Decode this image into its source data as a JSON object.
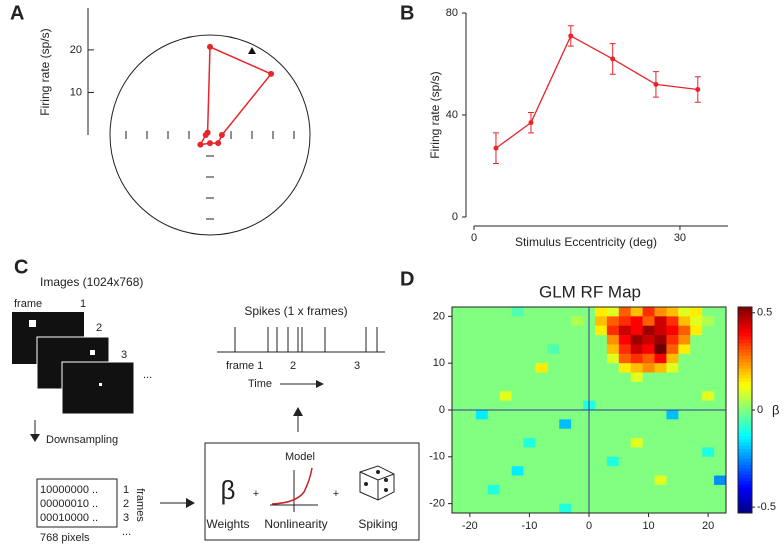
{
  "chart_data": [
    {
      "type": "polar",
      "panel": "A",
      "ylabel": "Firing rate (sp/s)",
      "values": [
        2.8,
        20.3,
        20.7,
        0.8,
        1,
        3.2,
        1.9,
        2.7
      ],
      "color": "#e8262a",
      "rlim": [
        0,
        23.5
      ],
      "rticks": [
        10,
        20
      ]
    },
    {
      "type": "line",
      "panel": "B",
      "xlabel": "Stimulus Eccentricity (deg)",
      "ylabel": "Firing rate (sp/s)",
      "x": [
        3.2,
        8.3,
        14.1,
        20.2,
        26.5,
        32.6
      ],
      "values": [
        27,
        37,
        71,
        62,
        52,
        50
      ],
      "errors": [
        6,
        4,
        4,
        6,
        5,
        5
      ],
      "color": "#e8262a",
      "xlim": [
        0,
        37
      ],
      "xticks": [
        0,
        30
      ],
      "ylim": [
        0,
        80
      ],
      "yticks": [
        0,
        40,
        80
      ]
    },
    {
      "type": "heatmap",
      "panel": "D",
      "title": "GLM RF Map",
      "xlim": [
        -23,
        23
      ],
      "ylim": [
        -22,
        22
      ],
      "xticks": [
        -20,
        -10,
        0,
        10,
        20
      ],
      "yticks": [
        -20,
        -10,
        0,
        10,
        20
      ],
      "zlim": [
        -0.53,
        0.53
      ],
      "zticks": [
        -0.5,
        0,
        0.5
      ],
      "zlabel": "β",
      "z": [
        [
          0,
          0,
          0,
          0,
          0,
          -0.05,
          0,
          0,
          0,
          0,
          0,
          0,
          0.15,
          0.1,
          0.3,
          0.2,
          0.35,
          0.25,
          0.2,
          0.1,
          0.15,
          0,
          0
        ],
        [
          0,
          0,
          0,
          0,
          0,
          0,
          0,
          0,
          0,
          0,
          0.05,
          0,
          0.2,
          0.3,
          0.35,
          0.4,
          0.3,
          0.45,
          0.35,
          0.2,
          0.1,
          0.05,
          0
        ],
        [
          0,
          0,
          0,
          0,
          0,
          0,
          0,
          0,
          0,
          0,
          0,
          0,
          0.15,
          0.35,
          0.45,
          0.4,
          0.5,
          0.45,
          0.4,
          0.3,
          0.15,
          0,
          0
        ],
        [
          0,
          0,
          0,
          0,
          0,
          0,
          0,
          0,
          0,
          0,
          0,
          0,
          0,
          0.25,
          0.4,
          0.5,
          0.45,
          0.5,
          0.35,
          0.25,
          0,
          0,
          0
        ],
        [
          0,
          0,
          0,
          0,
          0,
          0,
          0,
          0,
          -0.05,
          0,
          0,
          0,
          0,
          0.2,
          0.35,
          0.45,
          0.4,
          0.55,
          0.3,
          0.15,
          0,
          0,
          0
        ],
        [
          0,
          0,
          0,
          0,
          0,
          0,
          0,
          0,
          0,
          0,
          0,
          0,
          0,
          0.1,
          0.3,
          0.35,
          0.3,
          0.4,
          0.2,
          0,
          0,
          0,
          0
        ],
        [
          0,
          0,
          0,
          0,
          0,
          0,
          0,
          0.15,
          0,
          0,
          0,
          0,
          0,
          0,
          0.15,
          0.2,
          0.25,
          0.2,
          0.1,
          0,
          0,
          0,
          0
        ],
        [
          0,
          0,
          0,
          0,
          0,
          0,
          0,
          0,
          0,
          0,
          0,
          0,
          0,
          0,
          0,
          0.1,
          0,
          0,
          0,
          0,
          0,
          0,
          0
        ],
        [
          0,
          0,
          0,
          0,
          0,
          0,
          0,
          0,
          0,
          0,
          0,
          0,
          0,
          0,
          0,
          0,
          0,
          0,
          0,
          0,
          0,
          0,
          0
        ],
        [
          0,
          0,
          0,
          0,
          0.1,
          0,
          0,
          0,
          0,
          0,
          0,
          0,
          0,
          0,
          0,
          0,
          0,
          0,
          0,
          0,
          0,
          0.1,
          0
        ],
        [
          0,
          0,
          0,
          0,
          0,
          0,
          0,
          0,
          0,
          0,
          0,
          -0.1,
          0,
          0,
          0,
          0,
          0,
          0,
          0,
          0,
          0,
          0,
          0
        ],
        [
          0,
          0,
          -0.15,
          0,
          0,
          0,
          0,
          0,
          0,
          0,
          0,
          0,
          0,
          0,
          0,
          0,
          0,
          0,
          -0.2,
          0,
          0,
          0,
          0
        ],
        [
          0,
          0,
          0,
          0,
          0,
          0,
          0,
          0,
          0,
          -0.2,
          0,
          0,
          0,
          0,
          0,
          0,
          0,
          0,
          0,
          0,
          0,
          0,
          0
        ],
        [
          0,
          0,
          0,
          0,
          0,
          0,
          0,
          0,
          0,
          0,
          0,
          0,
          0,
          0,
          0,
          0,
          0,
          0,
          0,
          0,
          0,
          0,
          0
        ],
        [
          0,
          0,
          0,
          0,
          0,
          0,
          -0.1,
          0,
          0,
          0,
          0,
          0,
          0,
          0,
          0,
          0.1,
          0,
          0,
          0,
          0,
          0,
          0,
          0
        ],
        [
          0,
          0,
          0,
          0,
          0,
          0,
          0,
          0,
          0,
          0,
          0,
          0,
          0,
          0,
          0,
          0,
          0,
          0,
          0,
          0,
          0,
          -0.1,
          0
        ],
        [
          0,
          0,
          0,
          0,
          0,
          0,
          0,
          0,
          0,
          0,
          0,
          0,
          0,
          -0.1,
          0,
          0,
          0,
          0,
          0,
          0,
          0,
          0,
          0
        ],
        [
          0,
          0,
          0,
          0,
          0,
          -0.15,
          0,
          0,
          0,
          0,
          0,
          0,
          0,
          0,
          0,
          0,
          0,
          0,
          0,
          0,
          0,
          0,
          0
        ],
        [
          0,
          0,
          0,
          0,
          0,
          0,
          0,
          0,
          0,
          0,
          0,
          0,
          0,
          0,
          0,
          0,
          0,
          0.1,
          0,
          0,
          0,
          0,
          -0.25
        ],
        [
          0,
          0,
          0,
          -0.1,
          0,
          0,
          0,
          0,
          0,
          0,
          0,
          0,
          0,
          0,
          0,
          0,
          0,
          0,
          0,
          0,
          0,
          0,
          0
        ],
        [
          0,
          0,
          0,
          0,
          0,
          0,
          0,
          0,
          0,
          0,
          0,
          0,
          0,
          0,
          0,
          0,
          0,
          0,
          0,
          0,
          0,
          0,
          0
        ],
        [
          0,
          0,
          0,
          0,
          0,
          0,
          0,
          0,
          0,
          -0.1,
          0,
          0,
          0,
          0,
          0,
          0,
          0,
          0,
          0,
          0,
          0,
          0,
          0
        ]
      ]
    }
  ],
  "diagram": {
    "panel": "C",
    "images_title": "Images (1024x768)",
    "frame_label": "frame",
    "frame_numbers": [
      "1",
      "2",
      "3"
    ],
    "frames_more": "...",
    "downsampling": "Downsampling",
    "binary_rows": [
      "10000000 ..",
      "00000010 ..",
      "00010000 .."
    ],
    "row_numbers": [
      "1",
      "2",
      "3"
    ],
    "rows_more": "...",
    "frames_axis": "frames",
    "pixels_axis": "768 pixels",
    "spikes_title": "Spikes (1 x frames)",
    "spike_frame_labels": [
      "frame 1",
      "2",
      "3"
    ],
    "time_label": "Time",
    "model_title": "Model",
    "beta_symbol": "β",
    "plus": "+",
    "weights": "Weights",
    "nonlinearity": "Nonlinearity",
    "spiking": "Spiking"
  }
}
